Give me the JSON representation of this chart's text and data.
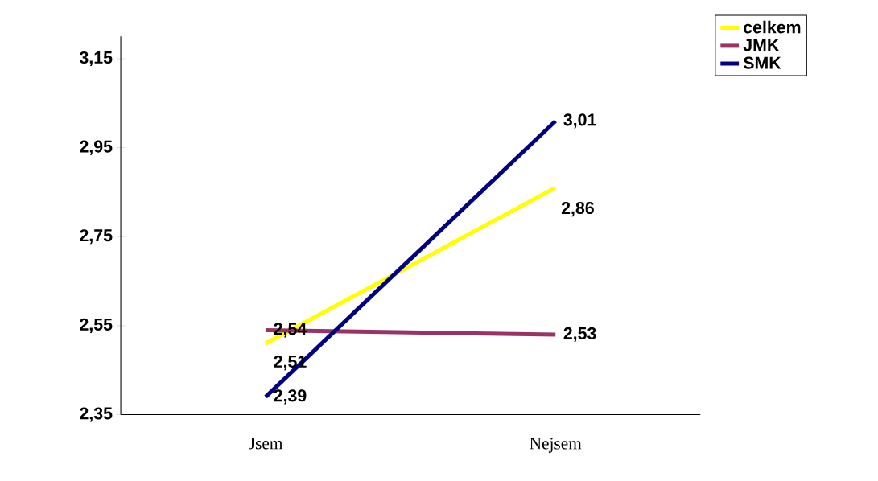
{
  "chart_data": {
    "type": "line",
    "categories": [
      "Jsem",
      "Nejsem"
    ],
    "series": [
      {
        "name": "celkem",
        "color": "#ffff00",
        "values": [
          2.51,
          2.86
        ],
        "value_labels": [
          "2,51",
          "2,86"
        ]
      },
      {
        "name": "JMK",
        "color": "#993366",
        "values": [
          2.54,
          2.53
        ],
        "value_labels": [
          "2,54",
          "2,53"
        ]
      },
      {
        "name": "SMK",
        "color": "#000080",
        "values": [
          2.39,
          3.01
        ],
        "value_labels": [
          "2,39",
          "3,01"
        ]
      }
    ],
    "ylim": [
      2.35,
      3.2
    ],
    "yticks": [
      {
        "value": 2.35,
        "label": "2,35"
      },
      {
        "value": 2.55,
        "label": "2,55"
      },
      {
        "value": 2.75,
        "label": "2,75"
      },
      {
        "value": 2.95,
        "label": "2,95"
      },
      {
        "value": 3.15,
        "label": "3,15"
      }
    ],
    "legend": "top right",
    "grid": false,
    "marker": "none",
    "line_style": "solid"
  }
}
